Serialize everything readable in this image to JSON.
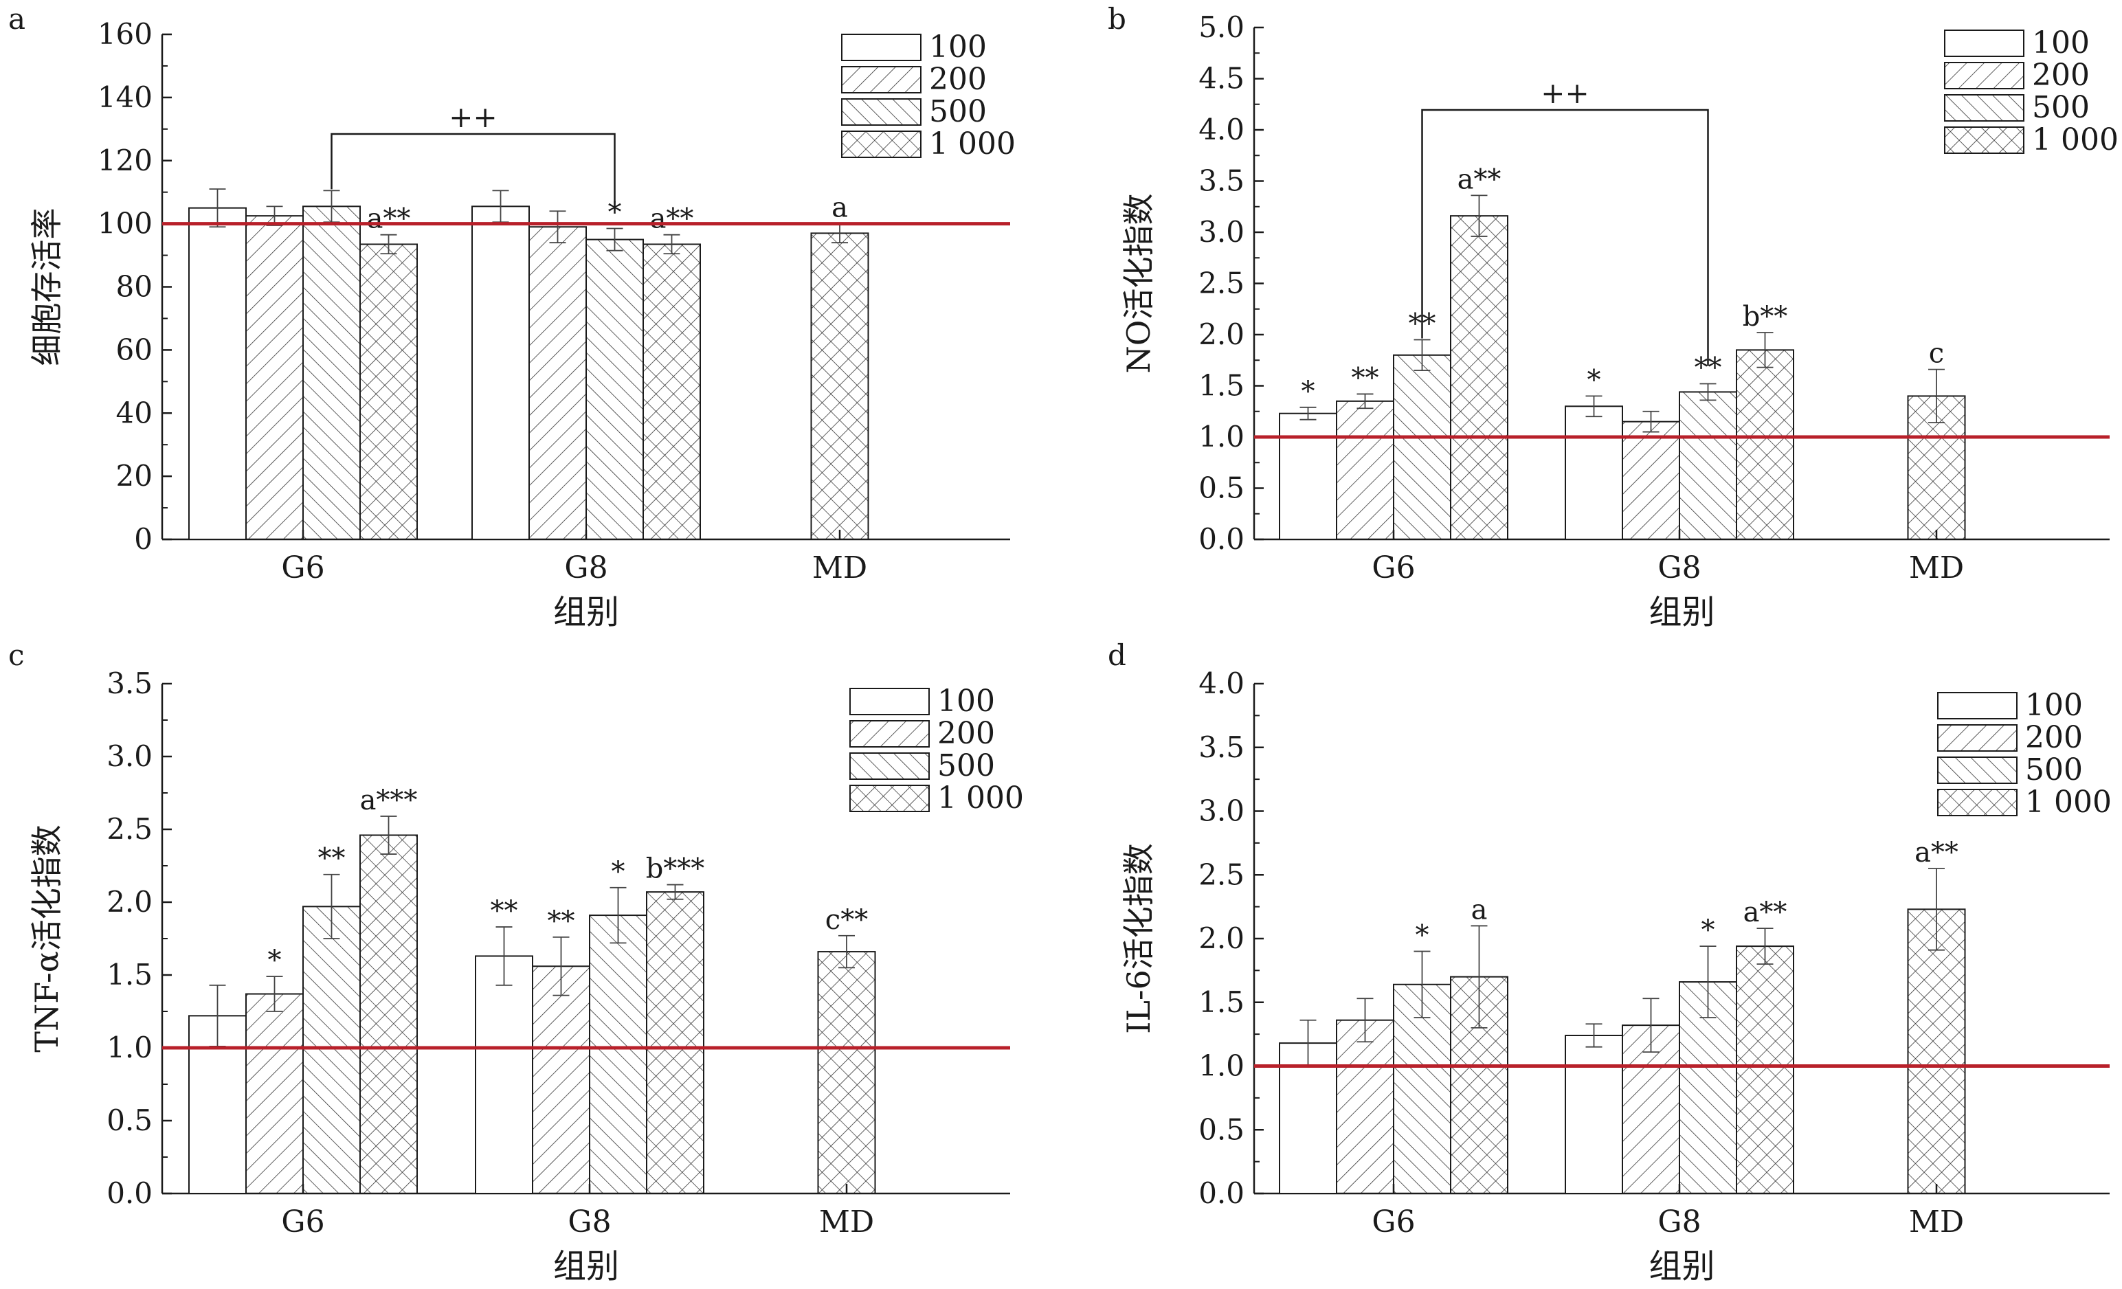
{
  "chart_data": [
    {
      "type": "bar",
      "panel_label": "a",
      "ylabel": "细胞存活率",
      "xlabel": "组别",
      "ylim": [
        0,
        160
      ],
      "yticks": [
        "0",
        "20",
        "40",
        "60",
        "80",
        "100",
        "120",
        "140",
        "160"
      ],
      "tick_values": [
        0,
        20,
        40,
        60,
        80,
        100,
        120,
        140,
        160
      ],
      "categories": [
        "G6",
        "G8",
        "MD"
      ],
      "series": [
        {
          "name": "100",
          "pattern": "none",
          "values": [
            105,
            105.5,
            null
          ],
          "errors": [
            6,
            5,
            null
          ],
          "annotations": [
            "",
            "",
            ""
          ]
        },
        {
          "name": "200",
          "pattern": "diag-right",
          "values": [
            102.5,
            99,
            null
          ],
          "errors": [
            3,
            5,
            null
          ],
          "annotations": [
            "",
            "",
            ""
          ]
        },
        {
          "name": "500",
          "pattern": "diag-left",
          "values": [
            105.5,
            95,
            null
          ],
          "errors": [
            5,
            3.5,
            null
          ],
          "annotations": [
            "",
            "*",
            ""
          ]
        },
        {
          "name": "1 000",
          "pattern": "cross",
          "values": [
            93.5,
            93.5,
            97
          ],
          "errors": [
            3,
            3,
            3
          ],
          "annotations": [
            "a**",
            "a**",
            "a"
          ]
        }
      ],
      "reference_line": 100,
      "bracket": {
        "text": "++",
        "from": [
          0,
          2
        ],
        "to": [
          1,
          2
        ]
      },
      "legend_position": "top-right"
    },
    {
      "type": "bar",
      "panel_label": "b",
      "ylabel": "NO活化指数",
      "xlabel": "组别",
      "ylim": [
        0,
        5.0
      ],
      "yticks": [
        "0.0",
        "0.5",
        "1.0",
        "1.5",
        "2.0",
        "2.5",
        "3.0",
        "3.5",
        "4.0",
        "4.5",
        "5.0"
      ],
      "tick_values": [
        0,
        0.5,
        1.0,
        1.5,
        2.0,
        2.5,
        3.0,
        3.5,
        4.0,
        4.5,
        5.0
      ],
      "categories": [
        "G6",
        "G8",
        "MD"
      ],
      "series": [
        {
          "name": "100",
          "pattern": "none",
          "values": [
            1.23,
            1.3,
            null
          ],
          "errors": [
            0.06,
            0.1,
            null
          ],
          "annotations": [
            "*",
            "*",
            ""
          ]
        },
        {
          "name": "200",
          "pattern": "diag-right",
          "values": [
            1.35,
            1.15,
            null
          ],
          "errors": [
            0.07,
            0.1,
            null
          ],
          "annotations": [
            "**",
            "",
            ""
          ]
        },
        {
          "name": "500",
          "pattern": "diag-left",
          "values": [
            1.8,
            1.44,
            null
          ],
          "errors": [
            0.15,
            0.08,
            null
          ],
          "annotations": [
            "**",
            "**",
            ""
          ]
        },
        {
          "name": "1 000",
          "pattern": "cross",
          "values": [
            3.16,
            1.85,
            1.4
          ],
          "errors": [
            0.2,
            0.17,
            0.26
          ],
          "annotations": [
            "a**",
            "b**",
            "c"
          ]
        }
      ],
      "reference_line": 1.0,
      "bracket": {
        "text": "++",
        "from": [
          0,
          2
        ],
        "to": [
          1,
          2
        ]
      },
      "legend_position": "top-right"
    },
    {
      "type": "bar",
      "panel_label": "c",
      "ylabel": "TNF-α活化指数",
      "xlabel": "组别",
      "ylim": [
        0,
        3.5
      ],
      "yticks": [
        "0.0",
        "0.5",
        "1.0",
        "1.5",
        "2.0",
        "2.5",
        "3.0",
        "3.5"
      ],
      "tick_values": [
        0,
        0.5,
        1.0,
        1.5,
        2.0,
        2.5,
        3.0,
        3.5
      ],
      "categories": [
        "G6",
        "G8",
        "MD"
      ],
      "series": [
        {
          "name": "100",
          "pattern": "none",
          "values": [
            1.22,
            1.63,
            null
          ],
          "errors": [
            0.21,
            0.2,
            null
          ],
          "annotations": [
            "",
            "**",
            ""
          ]
        },
        {
          "name": "200",
          "pattern": "diag-right",
          "values": [
            1.37,
            1.56,
            null
          ],
          "errors": [
            0.12,
            0.2,
            null
          ],
          "annotations": [
            "*",
            "**",
            ""
          ]
        },
        {
          "name": "500",
          "pattern": "diag-left",
          "values": [
            1.97,
            1.91,
            null
          ],
          "errors": [
            0.22,
            0.19,
            null
          ],
          "annotations": [
            "**",
            "*",
            ""
          ]
        },
        {
          "name": "1 000",
          "pattern": "cross",
          "values": [
            2.46,
            2.07,
            1.66
          ],
          "errors": [
            0.13,
            0.05,
            0.11
          ],
          "annotations": [
            "a***",
            "b***",
            "c**"
          ]
        }
      ],
      "reference_line": 1.0,
      "legend_position": "top-right"
    },
    {
      "type": "bar",
      "panel_label": "d",
      "ylabel": "IL-6活化指数",
      "xlabel": "组别",
      "ylim": [
        0,
        4.0
      ],
      "yticks": [
        "0.0",
        "0.5",
        "1.0",
        "1.5",
        "2.0",
        "2.5",
        "3.0",
        "3.5",
        "4.0"
      ],
      "tick_values": [
        0,
        0.5,
        1.0,
        1.5,
        2.0,
        2.5,
        3.0,
        3.5,
        4.0
      ],
      "categories": [
        "G6",
        "G8",
        "MD"
      ],
      "series": [
        {
          "name": "100",
          "pattern": "none",
          "values": [
            1.18,
            1.24,
            null
          ],
          "errors": [
            0.18,
            0.09,
            null
          ],
          "annotations": [
            "",
            "",
            ""
          ]
        },
        {
          "name": "200",
          "pattern": "diag-right",
          "values": [
            1.36,
            1.32,
            null
          ],
          "errors": [
            0.17,
            0.21,
            null
          ],
          "annotations": [
            "",
            "",
            ""
          ]
        },
        {
          "name": "500",
          "pattern": "diag-left",
          "values": [
            1.64,
            1.66,
            null
          ],
          "errors": [
            0.26,
            0.28,
            null
          ],
          "annotations": [
            "*",
            "*",
            ""
          ]
        },
        {
          "name": "1 000",
          "pattern": "cross",
          "values": [
            1.7,
            1.94,
            2.23
          ],
          "errors": [
            0.4,
            0.14,
            0.32
          ],
          "annotations": [
            "a",
            "a**",
            "a**"
          ]
        }
      ],
      "reference_line": 1.0,
      "legend_position": "top-right"
    }
  ],
  "colors": {
    "reference_line": "#b8202a",
    "axis": "#1a1a1a",
    "bar_fill": "#ffffff"
  }
}
